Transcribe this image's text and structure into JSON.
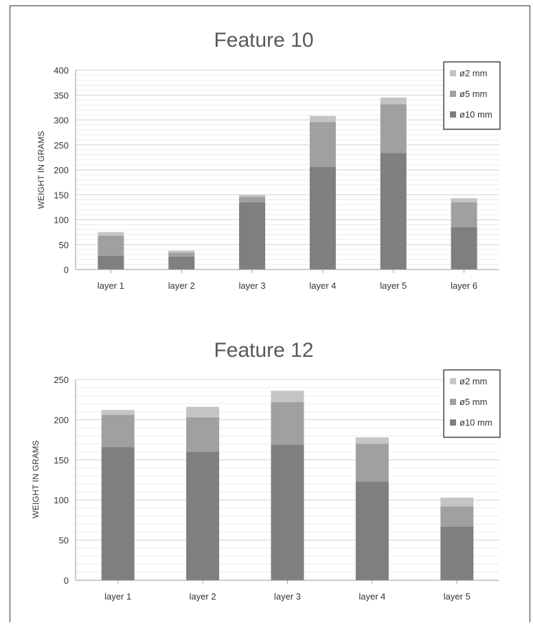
{
  "chart_data": [
    {
      "type": "bar",
      "stacked": true,
      "title": "Feature 10",
      "ylabel": "WEIGHT IN GRAMS",
      "xlabel": "",
      "categories": [
        "layer 1",
        "layer 2",
        "layer 3",
        "layer 4",
        "layer 5",
        "layer 6"
      ],
      "ylim": [
        0,
        400
      ],
      "yticks": [
        "0",
        "50",
        "100",
        "150",
        "200",
        "250",
        "300",
        "350",
        "400"
      ],
      "grid": true,
      "legend_position": "top-right",
      "series": [
        {
          "name": "ø10 mm",
          "color": "#7f7f7f",
          "values": [
            28,
            26,
            135,
            206,
            234,
            85
          ]
        },
        {
          "name": "ø5 mm",
          "color": "#a0a0a0",
          "values": [
            40,
            8,
            11,
            90,
            98,
            50
          ]
        },
        {
          "name": "ø2 mm",
          "color": "#c4c4c4",
          "values": [
            7,
            4,
            4,
            12,
            13,
            8
          ]
        }
      ]
    },
    {
      "type": "bar",
      "stacked": true,
      "title": "Feature 12",
      "ylabel": "WEIGHT IN GRAMS",
      "xlabel": "",
      "categories": [
        "layer 1",
        "layer 2",
        "layer 3",
        "layer 4",
        "layer 5"
      ],
      "ylim": [
        0,
        250
      ],
      "yticks": [
        "0",
        "50",
        "100",
        "150",
        "200",
        "250"
      ],
      "grid": true,
      "legend_position": "top-right",
      "series": [
        {
          "name": "ø10 mm",
          "color": "#7f7f7f",
          "values": [
            166,
            160,
            169,
            123,
            67
          ]
        },
        {
          "name": "ø5 mm",
          "color": "#a0a0a0",
          "values": [
            40,
            43,
            53,
            47,
            25
          ]
        },
        {
          "name": "ø2 mm",
          "color": "#c4c4c4",
          "values": [
            6,
            13,
            14,
            8,
            11
          ]
        }
      ]
    }
  ]
}
